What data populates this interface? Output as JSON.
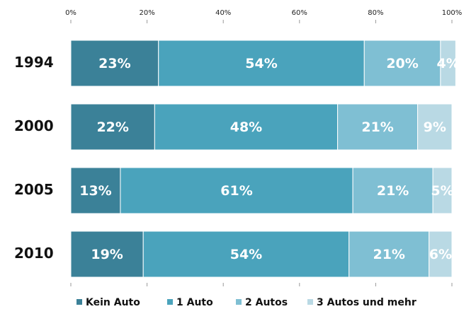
{
  "chart_data": {
    "type": "stacked_barh",
    "categories": [
      "1994",
      "2000",
      "2005",
      "2010"
    ],
    "series": [
      {
        "name": "Kein Auto",
        "color": "#3b8198",
        "values": [
          23,
          22,
          13,
          19
        ],
        "value_labels": [
          "23%",
          "22%",
          "13%",
          "19%"
        ]
      },
      {
        "name": "1 Auto",
        "color": "#4aa3bc",
        "values": [
          54,
          48,
          61,
          54
        ],
        "value_labels": [
          "54%",
          "48%",
          "61%",
          "54%"
        ]
      },
      {
        "name": "2 Autos",
        "color": "#7fbfd3",
        "values": [
          20,
          21,
          21,
          21
        ],
        "value_labels": [
          "20%",
          "21%",
          "21%",
          "21%"
        ]
      },
      {
        "name": "3 Autos und mehr",
        "color": "#b9d9e4",
        "values": [
          4,
          9,
          5,
          6
        ],
        "value_labels": [
          "4%",
          "9%",
          "5%",
          "6%"
        ]
      }
    ],
    "xlim": [
      0,
      100
    ],
    "xticks": [
      {
        "value": 0,
        "label": "0%"
      },
      {
        "value": 20,
        "label": "20%"
      },
      {
        "value": 40,
        "label": "40%"
      },
      {
        "value": 60,
        "label": "60%"
      },
      {
        "value": 80,
        "label": "80%"
      },
      {
        "value": 100,
        "label": "100%"
      }
    ],
    "legend": "bottom"
  }
}
